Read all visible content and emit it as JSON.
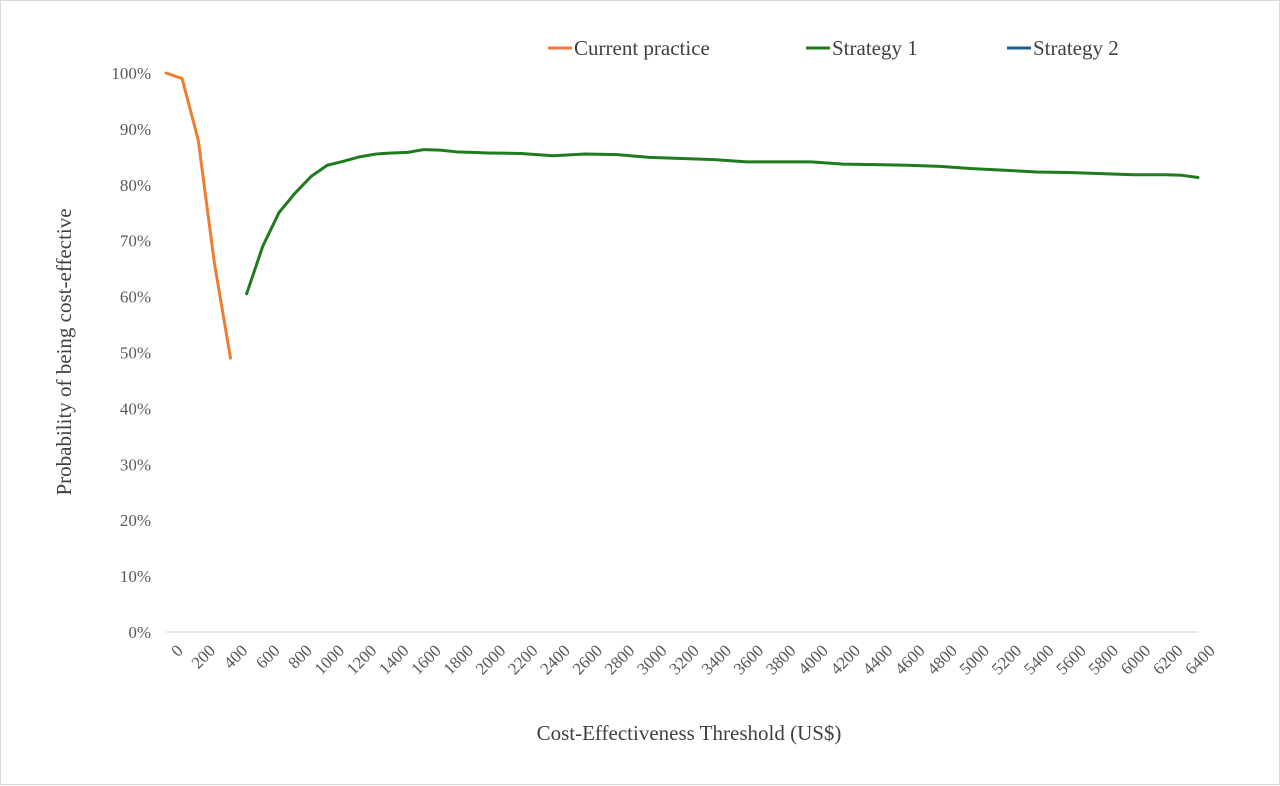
{
  "chart_data": {
    "type": "line",
    "xlabel": "Cost-Effectiveness Threshold (US$)",
    "ylabel": "Probability of being cost-effective",
    "x_ticks": [
      "0",
      "200",
      "400",
      "600",
      "800",
      "1000",
      "1200",
      "1400",
      "1600",
      "1800",
      "2000",
      "2200",
      "2400",
      "2600",
      "2800",
      "3000",
      "3200",
      "3400",
      "3600",
      "3800",
      "4000",
      "4200",
      "4400",
      "4600",
      "4800",
      "5000",
      "5200",
      "5400",
      "5600",
      "5800",
      "6000",
      "6200",
      "6400"
    ],
    "y_ticks": [
      "0%",
      "10%",
      "20%",
      "30%",
      "40%",
      "50%",
      "60%",
      "70%",
      "80%",
      "90%",
      "100%"
    ],
    "xlim": [
      0,
      6400
    ],
    "ylim": [
      0,
      100
    ],
    "grid": false,
    "legend_position": "top",
    "series": [
      {
        "name": "Current practice",
        "color": "#ED7D31",
        "points": [
          [
            0,
            100
          ],
          [
            100,
            99
          ],
          [
            200,
            88
          ],
          [
            300,
            66
          ],
          [
            400,
            49
          ]
        ]
      },
      {
        "name": "Strategy 1",
        "color": "#1E7B1E",
        "points": [
          [
            500,
            60.5
          ],
          [
            600,
            69
          ],
          [
            700,
            75
          ],
          [
            800,
            78.5
          ],
          [
            900,
            81.5
          ],
          [
            1000,
            83.5
          ],
          [
            1100,
            84.2
          ],
          [
            1200,
            85
          ],
          [
            1300,
            85.5
          ],
          [
            1400,
            85.7
          ],
          [
            1500,
            85.8
          ],
          [
            1600,
            86.3
          ],
          [
            1700,
            86.2
          ],
          [
            1800,
            85.9
          ],
          [
            1900,
            85.8
          ],
          [
            2000,
            85.7
          ],
          [
            2200,
            85.6
          ],
          [
            2400,
            85.2
          ],
          [
            2600,
            85.5
          ],
          [
            2800,
            85.4
          ],
          [
            3000,
            84.9
          ],
          [
            3200,
            84.7
          ],
          [
            3400,
            84.5
          ],
          [
            3600,
            84.1
          ],
          [
            3800,
            84.1
          ],
          [
            4000,
            84.1
          ],
          [
            4200,
            83.7
          ],
          [
            4400,
            83.6
          ],
          [
            4600,
            83.5
          ],
          [
            4800,
            83.3
          ],
          [
            5000,
            82.9
          ],
          [
            5200,
            82.6
          ],
          [
            5400,
            82.3
          ],
          [
            5600,
            82.2
          ],
          [
            5800,
            82
          ],
          [
            6000,
            81.8
          ],
          [
            6200,
            81.8
          ],
          [
            6300,
            81.7
          ],
          [
            6400,
            81.3
          ]
        ]
      },
      {
        "name": "Strategy 2",
        "color": "#1F5F8B",
        "points": []
      }
    ],
    "axis_color": "#d9d9d9"
  }
}
